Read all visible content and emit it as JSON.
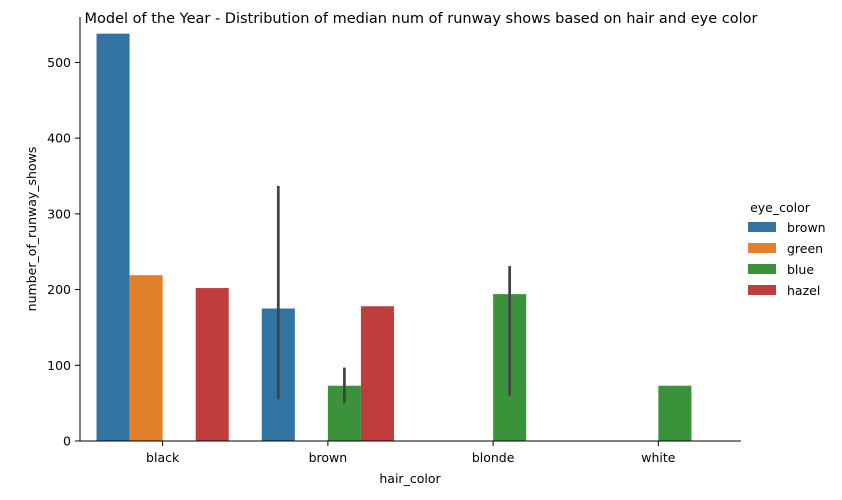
{
  "chart_data": {
    "type": "bar",
    "title": "Model of the Year - Distribution of median num of runway shows based on hair and eye color",
    "xlabel": "hair_color",
    "ylabel": "number_of_runway_shows",
    "categories": [
      "black",
      "brown",
      "blonde",
      "white"
    ],
    "ylim": [
      0,
      560
    ],
    "yticks": [
      0,
      100,
      200,
      300,
      400,
      500
    ],
    "legend": {
      "title": "eye_color",
      "placement": "right"
    },
    "series": [
      {
        "name": "brown",
        "color": "#3274a1",
        "values": [
          538,
          175,
          null,
          null
        ],
        "ci": [
          null,
          [
            55,
            337
          ],
          null,
          null
        ]
      },
      {
        "name": "green",
        "color": "#e1812c",
        "values": [
          219,
          null,
          null,
          null
        ],
        "ci": [
          null,
          null,
          null,
          null
        ]
      },
      {
        "name": "blue",
        "color": "#3a923a",
        "values": [
          null,
          73,
          194,
          73
        ],
        "ci": [
          null,
          [
            50,
            97
          ],
          [
            60,
            231
          ],
          null
        ]
      },
      {
        "name": "hazel",
        "color": "#c03d3e",
        "values": [
          202,
          178,
          null,
          null
        ],
        "ci": [
          null,
          null,
          null,
          null
        ]
      }
    ]
  }
}
